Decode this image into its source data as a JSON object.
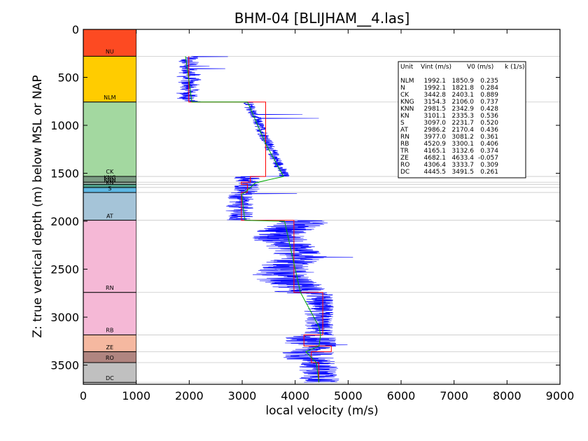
{
  "chart_data": {
    "type": "line",
    "title": "BHM-04 [BLIJHAM__4.las]",
    "xlabel": "local velocity (m/s)",
    "ylabel": "Z: true vertical depth (m) below MSL or NAP",
    "xlim": [
      0,
      9000
    ],
    "ylim": [
      3700,
      0
    ],
    "x_ticks": [
      "0",
      "1000",
      "2000",
      "3000",
      "4000",
      "5000",
      "6000",
      "7000",
      "8000",
      "9000"
    ],
    "y_ticks": [
      "0",
      "500",
      "1000",
      "1500",
      "2000",
      "2500",
      "3000",
      "3500"
    ],
    "units": [
      {
        "name": "NU",
        "top": 0,
        "base": 280,
        "color": "#fd4a22"
      },
      {
        "name": "NLM",
        "top": 280,
        "base": 757,
        "color": "#ffcc00"
      },
      {
        "name": "CK",
        "top": 757,
        "base": 1533,
        "color": "#a3d8a0"
      },
      {
        "name": "KNG",
        "top": 1533,
        "base": 1593,
        "color": "#7b9b83"
      },
      {
        "name": "KNN",
        "top": 1593,
        "base": 1615,
        "color": "#a4bdb0"
      },
      {
        "name": "KN",
        "top": 1615,
        "base": 1648,
        "color": "#4fa08a"
      },
      {
        "name": "S",
        "top": 1648,
        "base": 1700,
        "color": "#5eb8e4"
      },
      {
        "name": "AT",
        "top": 1700,
        "base": 1990,
        "color": "#a5c4d8"
      },
      {
        "name": "RN",
        "top": 1990,
        "base": 2742,
        "color": "#f5b8d6"
      },
      {
        "name": "RB",
        "top": 2742,
        "base": 3185,
        "color": "#f5b8d6"
      },
      {
        "name": "ZE",
        "top": 3185,
        "base": 3360,
        "color": "#f5b8a0"
      },
      {
        "name": "RO",
        "top": 3360,
        "base": 3474,
        "color": "#b08580"
      },
      {
        "name": "DC",
        "top": 3474,
        "base": 3700,
        "color": "#c0c0c0"
      }
    ],
    "label_depths": [
      {
        "name": "NU",
        "z": 250
      },
      {
        "name": "NLM",
        "z": 730
      },
      {
        "name": "CK",
        "z": 1505
      },
      {
        "name": "KNG",
        "z": 1565
      },
      {
        "name": "KNN",
        "z": 1590
      },
      {
        "name": "KN",
        "z": 1615
      },
      {
        "name": "S",
        "z": 1680
      },
      {
        "name": "AT",
        "z": 1965
      },
      {
        "name": "RN",
        "z": 2715
      },
      {
        "name": "RB",
        "z": 3157
      },
      {
        "name": "ZE",
        "z": 3335
      },
      {
        "name": "RO",
        "z": 3445
      },
      {
        "name": "DC",
        "z": 3655
      }
    ],
    "boundaries": [
      280,
      757,
      1533,
      1593,
      1615,
      1648,
      1700,
      1990,
      2742,
      3185,
      3360,
      3474,
      3680
    ],
    "series": [
      {
        "color": "#ff0000",
        "points": [
          [
            1992,
            280
          ],
          [
            1992,
            757
          ],
          [
            3443,
            757
          ],
          [
            3443,
            1533
          ],
          [
            3154,
            1533
          ],
          [
            3154,
            1593
          ],
          [
            2982,
            1593
          ],
          [
            2982,
            1615
          ],
          [
            3101,
            1615
          ],
          [
            3101,
            1648
          ],
          [
            3097,
            1648
          ],
          [
            3097,
            1700
          ],
          [
            2986,
            1700
          ],
          [
            2986,
            1990
          ],
          [
            3977,
            1990
          ],
          [
            3977,
            2742
          ],
          [
            4521,
            2742
          ],
          [
            4521,
            3185
          ],
          [
            4165,
            3185
          ],
          [
            4165,
            3300
          ],
          [
            4682,
            3300
          ],
          [
            4682,
            3360
          ],
          [
            4306,
            3360
          ],
          [
            4306,
            3474
          ],
          [
            4446,
            3474
          ],
          [
            4446,
            3680
          ]
        ]
      },
      {
        "color": "#00aa00",
        "points": [
          [
            1930,
            280
          ],
          [
            2000,
            550
          ],
          [
            2050,
            757
          ],
          [
            3100,
            757
          ],
          [
            3450,
            1200
          ],
          [
            3780,
            1533
          ],
          [
            3250,
            1600
          ],
          [
            3050,
            1700
          ],
          [
            2990,
            1720
          ],
          [
            3050,
            1990
          ],
          [
            3800,
            2000
          ],
          [
            4100,
            2742
          ],
          [
            4450,
            3100
          ],
          [
            4480,
            3185
          ],
          [
            4450,
            3300
          ],
          [
            4200,
            3360
          ],
          [
            4400,
            3474
          ],
          [
            4450,
            3680
          ]
        ]
      }
    ],
    "log_trace_color": "#0000ff",
    "table": {
      "headers": [
        "Unit",
        "Vint (m/s)",
        "V0 (m/s)",
        "k (1/s)"
      ],
      "rows": [
        [
          "NLM",
          "1992.1",
          "1850.9",
          "0.235"
        ],
        [
          "N",
          "1992.1",
          "1821.8",
          "0.284"
        ],
        [
          "CK",
          "3442.8",
          "2403.1",
          "0.889"
        ],
        [
          "KNG",
          "3154.3",
          "2106.0",
          "0.737"
        ],
        [
          "KNN",
          "2981.5",
          "2342.9",
          "0.428"
        ],
        [
          "KN",
          "3101.1",
          "2335.3",
          "0.536"
        ],
        [
          "S",
          "3097.0",
          "2231.7",
          "0.520"
        ],
        [
          "AT",
          "2986.2",
          "2170.4",
          "0.436"
        ],
        [
          "RN",
          "3977.0",
          "3081.2",
          "0.361"
        ],
        [
          "RB",
          "4520.9",
          "3300.1",
          "0.406"
        ],
        [
          "TR",
          "4165.1",
          "3132.6",
          "0.374"
        ],
        [
          "ZE",
          "4682.1",
          "4633.4",
          "-0.057"
        ],
        [
          "RO",
          "4306.4",
          "3333.7",
          "0.309"
        ],
        [
          "DC",
          "4445.5",
          "3491.5",
          "0.261"
        ]
      ]
    }
  }
}
